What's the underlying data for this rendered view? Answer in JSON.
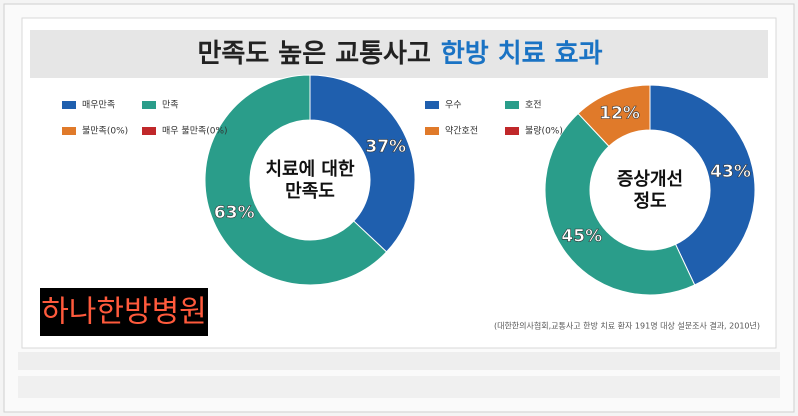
{
  "header": {
    "title": "만족도 높은 교통사고",
    "title_highlight": "한방 치료 효과"
  },
  "chart_data": [
    {
      "type": "donut",
      "center_label": [
        "치료에 대한",
        "만족도"
      ],
      "categories": [
        "매우만족",
        "만족",
        "불만족(0%)",
        "매우 불만족(0%)"
      ],
      "values": [
        37,
        63,
        0,
        0
      ],
      "value_labels": [
        "37%",
        "63%",
        null,
        null
      ],
      "colors": [
        "#1f5fae",
        "#2a9d8a",
        "#e07a2a",
        "#c0282a"
      ]
    },
    {
      "type": "donut",
      "center_label": [
        "증상개선",
        "정도"
      ],
      "categories": [
        "우수",
        "호전",
        "약간호전",
        "불량(0%)"
      ],
      "values": [
        43,
        45,
        12,
        0
      ],
      "value_labels": [
        "43%",
        "45%",
        "12%",
        null
      ],
      "colors": [
        "#1f5fae",
        "#2a9d8a",
        "#e07a2a",
        "#c0282a"
      ]
    }
  ],
  "source": "(대한한의사협회,교통사고 한방 치료 환자 191명 대상 설문조사 결과, 2010년)",
  "watermark": "하나한방병원"
}
